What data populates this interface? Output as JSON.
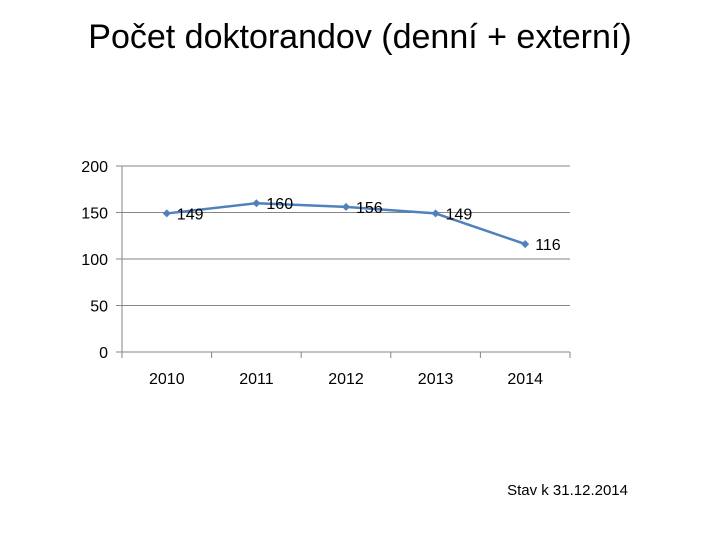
{
  "chart_data": {
    "type": "line",
    "title": "Počet doktorandov (denní + externí)",
    "categories": [
      "2010",
      "2011",
      "2012",
      "2013",
      "2014"
    ],
    "series": [
      {
        "values": [
          149,
          160,
          156,
          149,
          116
        ],
        "color": "#4F81BD"
      }
    ],
    "data_labels": [
      "149",
      "160",
      "156",
      "149",
      "116"
    ],
    "y_ticks": [
      "0",
      "50",
      "100",
      "150",
      "200"
    ],
    "ylim": [
      0,
      200
    ],
    "grid": true,
    "legend": "none",
    "xlabel": "",
    "ylabel": ""
  },
  "note": "Stav k 31.12.2014"
}
